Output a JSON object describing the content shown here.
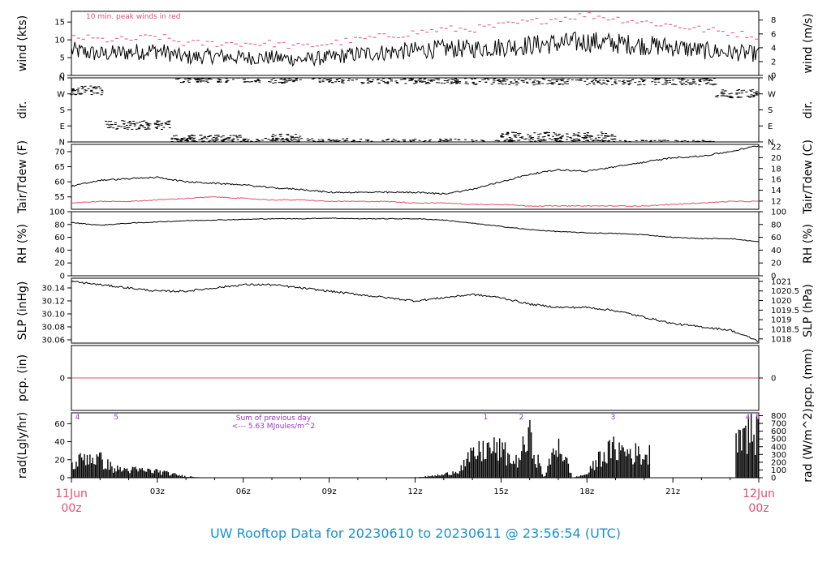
{
  "footer_title": "UW Rooftop Data for 20230610  to  20230611 @ 23:56:54  (UTC)",
  "colors": {
    "line": "#000000",
    "peak_wind": "#e0507a",
    "dewpoint": "#e0506a",
    "precip": "#e05060",
    "annotation": "#9933cc",
    "time_label_red": "#e05070",
    "footer": "#1e8fcf"
  },
  "time_axis": {
    "ticks": [
      "03z",
      "06z",
      "09z",
      "12z",
      "15z",
      "18z",
      "21z"
    ],
    "start_label": [
      "11Jun",
      "00z"
    ],
    "end_label": [
      "12Jun",
      "00z"
    ]
  },
  "chart_data": [
    {
      "type": "line",
      "name": "wind",
      "ylabel": "wind (kts)",
      "ylabel_right": "wind (m/s)",
      "yticks": [
        0,
        5,
        10,
        15
      ],
      "yticks_right": [
        0,
        2,
        4,
        6,
        8
      ],
      "ylim": [
        0,
        18
      ],
      "annotation": "10 min. peak winds in red",
      "x_hours": [
        0,
        1,
        2,
        3,
        4,
        5,
        6,
        7,
        8,
        9,
        10,
        11,
        12,
        13,
        14,
        15,
        16,
        17,
        18,
        19,
        20,
        21,
        22,
        23,
        24
      ],
      "mean_kts": [
        7,
        6,
        6.5,
        7,
        5,
        5.5,
        5,
        5,
        4.5,
        5,
        6,
        6.5,
        7,
        7.5,
        7.5,
        8,
        8.5,
        9,
        9.5,
        9,
        8.5,
        8,
        7,
        6.5,
        6
      ],
      "peak_kts": [
        11,
        10,
        10,
        11,
        9,
        9,
        9,
        9,
        8,
        9,
        10,
        11,
        12,
        13,
        13,
        14,
        15,
        16,
        17,
        16,
        15,
        14,
        13,
        12,
        11
      ]
    },
    {
      "type": "scatter",
      "name": "direction",
      "ylabel": "dir.",
      "ylabel_right": "dir.",
      "ytick_labels": [
        "N",
        "E",
        "S",
        "W",
        "N"
      ],
      "ylim": [
        0,
        360
      ],
      "segments": [
        {
          "from": 0,
          "to": 1.2,
          "deg": 290
        },
        {
          "from": 1.2,
          "to": 3.5,
          "deg": 95
        },
        {
          "from": 3.5,
          "to": 6,
          "deg": 15
        },
        {
          "from": 3.8,
          "to": 5.5,
          "deg": 358
        },
        {
          "from": 6,
          "to": 10,
          "deg": 355
        },
        {
          "from": 7,
          "to": 8,
          "deg": 20
        },
        {
          "from": 10,
          "to": 14,
          "deg": 352
        },
        {
          "from": 14,
          "to": 22.5,
          "deg": 345
        },
        {
          "from": 15,
          "to": 19,
          "deg": 30
        },
        {
          "from": 22.5,
          "to": 24,
          "deg": 270
        }
      ]
    },
    {
      "type": "line",
      "name": "temperature",
      "ylabel": "Tair/Tdew (F)",
      "ylabel_right": "Tair/Tdew (C)",
      "yticks": [
        55,
        60,
        65,
        70
      ],
      "yticks_right": [
        12,
        14,
        16,
        18,
        20,
        22
      ],
      "ylim": [
        50.9,
        72.4
      ],
      "x_hours": [
        0,
        1,
        2,
        3,
        4,
        5,
        6,
        7,
        8,
        9,
        10,
        11,
        12,
        13,
        14,
        15,
        16,
        17,
        18,
        19,
        20,
        21,
        22,
        23,
        24
      ],
      "tair_f": [
        58.5,
        60.5,
        61,
        61.5,
        60,
        59.5,
        59,
        58,
        57.5,
        56.5,
        56.5,
        56.5,
        56.5,
        56,
        57.5,
        60,
        62.5,
        64,
        63.5,
        65,
        66.5,
        68,
        68.5,
        70,
        72
      ],
      "tdew_f": [
        53,
        53.5,
        53.5,
        54,
        54.5,
        55,
        54.5,
        54,
        54,
        53.5,
        53.5,
        53.5,
        53,
        53,
        52.5,
        52.5,
        52,
        52,
        52,
        52,
        52,
        52.5,
        53,
        53.5,
        53.5
      ]
    },
    {
      "type": "line",
      "name": "relative_humidity",
      "ylabel": "RH (%)",
      "ylabel_right": "RH (%)",
      "yticks": [
        0,
        20,
        40,
        60,
        80,
        100
      ],
      "yticks_right": [
        0,
        20,
        40,
        60,
        80,
        100
      ],
      "ylim": [
        0,
        100
      ],
      "x_hours": [
        0,
        1,
        2,
        3,
        4,
        5,
        6,
        7,
        8,
        9,
        10,
        11,
        12,
        13,
        14,
        15,
        16,
        17,
        18,
        19,
        20,
        21,
        22,
        23,
        24
      ],
      "rh": [
        83,
        79,
        82,
        84,
        86,
        87,
        88,
        89,
        89,
        90,
        89,
        89,
        89,
        87,
        82,
        77,
        72,
        69,
        67,
        66,
        64,
        60,
        58,
        58,
        53
      ]
    },
    {
      "type": "line",
      "name": "sea_level_pressure",
      "ylabel": "SLP (inHg)",
      "ylabel_right": "SLP (hPa)",
      "yticks": [
        30.06,
        30.08,
        30.1,
        30.12,
        30.14
      ],
      "yticks_right": [
        1018,
        1018.5,
        1019,
        1019.5,
        1020,
        1020.5,
        1021
      ],
      "ylim": [
        30.055,
        30.155
      ],
      "x_hours": [
        0,
        1,
        2,
        3,
        4,
        5,
        6,
        7,
        8,
        9,
        10,
        11,
        12,
        13,
        14,
        15,
        16,
        17,
        18,
        19,
        20,
        21,
        22,
        23,
        24
      ],
      "slp": [
        30.15,
        30.145,
        30.14,
        30.135,
        30.135,
        30.14,
        30.145,
        30.145,
        30.14,
        30.135,
        30.13,
        30.125,
        30.12,
        30.125,
        30.13,
        30.125,
        30.115,
        30.11,
        30.11,
        30.105,
        30.095,
        30.085,
        30.08,
        30.075,
        30.058
      ]
    },
    {
      "type": "line",
      "name": "precipitation",
      "ylabel": "pcp. (in)",
      "ylabel_right": "pcp. (mm)",
      "yticks": [
        0
      ],
      "yticks_right": [
        0
      ],
      "ylim": [
        -1,
        1
      ],
      "x_hours": [
        0,
        24
      ],
      "pcp": [
        0,
        0
      ]
    },
    {
      "type": "bar",
      "name": "radiation",
      "ylabel": "rad(Lgly/hr)",
      "ylabel_right": "rad (W/m^2)",
      "yticks": [
        0,
        20,
        40,
        60
      ],
      "yticks_right": [
        0,
        100,
        200,
        300,
        400,
        500,
        600,
        700,
        800
      ],
      "ylim": [
        0,
        72
      ],
      "annotation_lines": [
        "Sum of previous day",
        "<--- 5.63 MJoules/m^2"
      ],
      "top_markers": [
        {
          "hour": 0.1,
          "label": "4"
        },
        {
          "hour": 1.45,
          "label": "5"
        },
        {
          "hour": 14.35,
          "label": "1"
        },
        {
          "hour": 15.6,
          "label": "2"
        },
        {
          "hour": 18.8,
          "label": "3"
        },
        {
          "hour": 23.5,
          "label": "4"
        },
        {
          "hour": 23.85,
          "label": "5"
        }
      ],
      "x_hours": [
        0,
        0.5,
        1,
        1.5,
        2,
        2.5,
        3,
        3.5,
        4,
        4.5,
        12,
        12.5,
        13,
        13.5,
        14,
        14.5,
        15,
        15.5,
        16,
        16.5,
        17,
        17.5,
        18,
        18.5,
        19,
        19.5,
        20,
        23.3,
        23.6,
        24
      ],
      "values": [
        15,
        30,
        25,
        12,
        11,
        10,
        9,
        5,
        2,
        0.5,
        0.5,
        2,
        4,
        10,
        30,
        40,
        38,
        20,
        55,
        0,
        50,
        0,
        5,
        30,
        40,
        35,
        30,
        70,
        65,
        55
      ]
    }
  ]
}
